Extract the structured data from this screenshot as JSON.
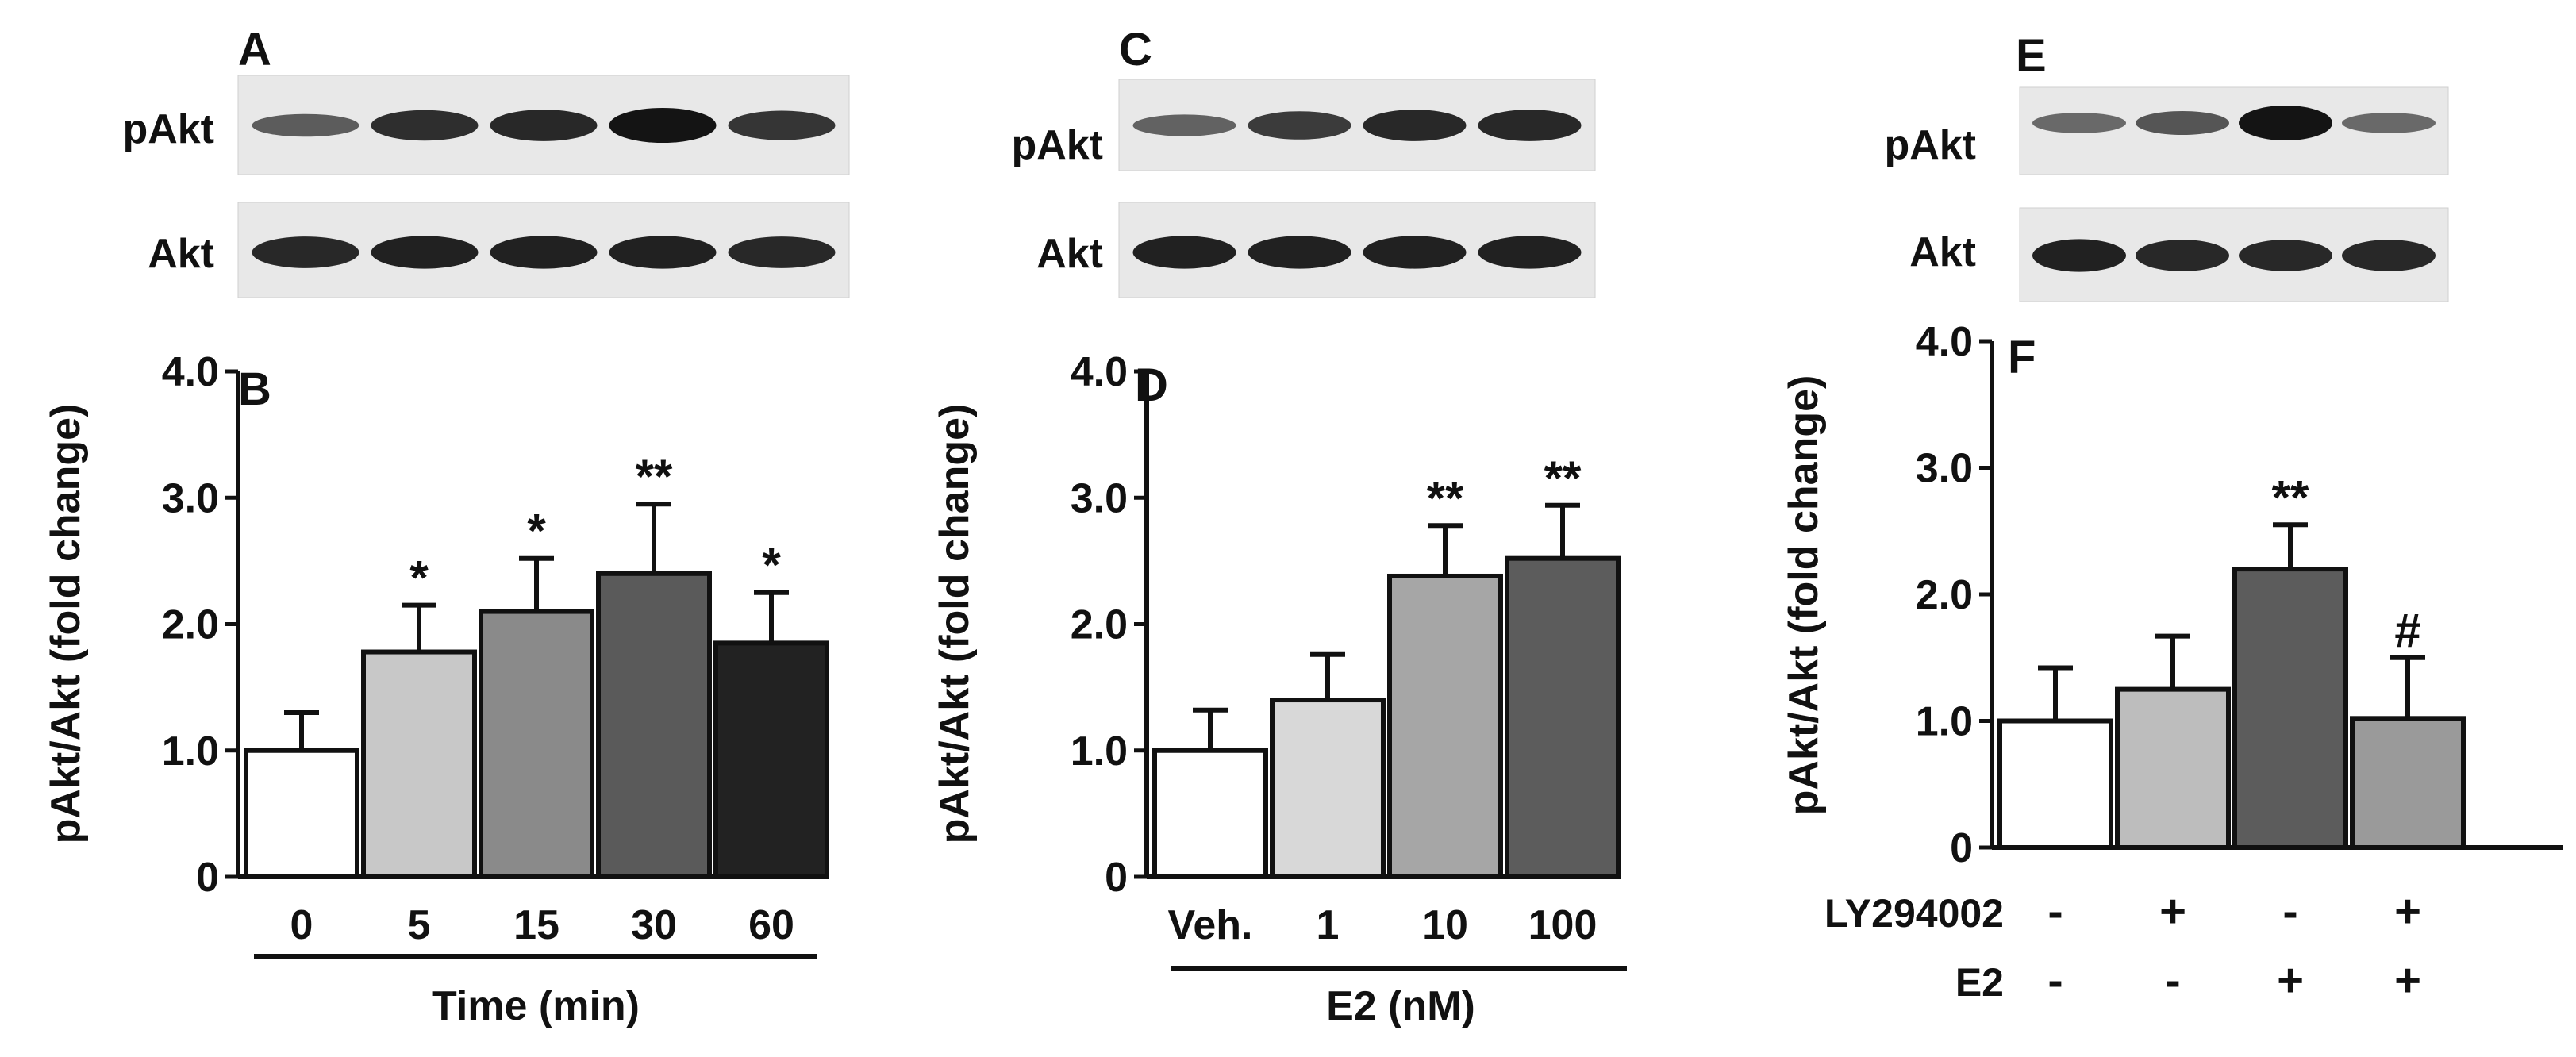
{
  "colors": {
    "axis": "#111111",
    "blot_background": "#e8e8e8",
    "band": "#1a1a1a",
    "gray_1": "#ffffff",
    "gray_2": "#c8c8c8",
    "gray_3": "#9a9a9a",
    "gray_4": "#606060",
    "gray_5": "#2b2b2b"
  },
  "blots": [
    {
      "panel_label": "A",
      "rows": [
        {
          "label": "pAkt",
          "band_intensity": [
            0.45,
            0.8,
            0.85,
            1.0,
            0.75
          ]
        },
        {
          "label": "Akt",
          "band_intensity": [
            0.85,
            0.9,
            0.9,
            0.9,
            0.85
          ]
        }
      ]
    },
    {
      "panel_label": "C",
      "rows": [
        {
          "label": "pAkt",
          "band_intensity": [
            0.4,
            0.7,
            0.85,
            0.85
          ]
        },
        {
          "label": "Akt",
          "band_intensity": [
            0.9,
            0.9,
            0.9,
            0.9
          ]
        }
      ]
    },
    {
      "panel_label": "E",
      "rows": [
        {
          "label": "pAkt",
          "band_intensity": [
            0.35,
            0.5,
            1.0,
            0.35
          ]
        },
        {
          "label": "Akt",
          "band_intensity": [
            0.9,
            0.85,
            0.85,
            0.85
          ]
        }
      ]
    }
  ],
  "chart_data": [
    {
      "type": "bar",
      "panel_label": "B",
      "ylabel": "pAkt/Akt (fold change)",
      "xlabel": "Time (min)",
      "ylim": [
        0,
        4
      ],
      "yticks": [
        "0",
        "1.0",
        "2.0",
        "3.0",
        "4.0"
      ],
      "categories": [
        "0",
        "5",
        "15",
        "30",
        "60"
      ],
      "values": [
        1.0,
        1.78,
        2.1,
        2.4,
        1.85
      ],
      "errors": [
        0.3,
        0.37,
        0.42,
        0.55,
        0.4
      ],
      "annotations": [
        "",
        "*",
        "*",
        "**",
        "*"
      ],
      "bar_colors": [
        "#ffffff",
        "#c8c8c8",
        "#8a8a8a",
        "#5a5a5a",
        "#222222"
      ]
    },
    {
      "type": "bar",
      "panel_label": "D",
      "ylabel": "pAkt/Akt (fold change)",
      "xlabel": "E2 (nM)",
      "ylim": [
        0,
        4
      ],
      "yticks": [
        "0",
        "1.0",
        "2.0",
        "3.0",
        "4.0"
      ],
      "categories": [
        "Veh.",
        "1",
        "10",
        "100"
      ],
      "values": [
        1.0,
        1.4,
        2.38,
        2.52
      ],
      "errors": [
        0.32,
        0.36,
        0.4,
        0.42
      ],
      "annotations": [
        "",
        "",
        "**",
        "**"
      ],
      "bar_colors": [
        "#ffffff",
        "#d8d8d8",
        "#a6a6a6",
        "#5c5c5c"
      ]
    },
    {
      "type": "bar",
      "panel_label": "F",
      "ylabel": "pAkt/Akt (fold change)",
      "ylim": [
        0,
        4
      ],
      "yticks": [
        "0",
        "1.0",
        "2.0",
        "3.0",
        "4.0"
      ],
      "categories": [
        "",
        "",
        "",
        ""
      ],
      "values": [
        1.0,
        1.25,
        2.2,
        1.02
      ],
      "errors": [
        0.42,
        0.42,
        0.35,
        0.48
      ],
      "annotations": [
        "",
        "",
        "**",
        "#"
      ],
      "bar_colors": [
        "#ffffff",
        "#bdbdbd",
        "#5c5c5c",
        "#9a9a9a"
      ],
      "treatment_rows": [
        {
          "label": "LY294002",
          "signs": [
            "-",
            "+",
            "-",
            "+"
          ]
        },
        {
          "label": "E2",
          "signs": [
            "-",
            "-",
            "+",
            "+"
          ]
        }
      ]
    }
  ]
}
